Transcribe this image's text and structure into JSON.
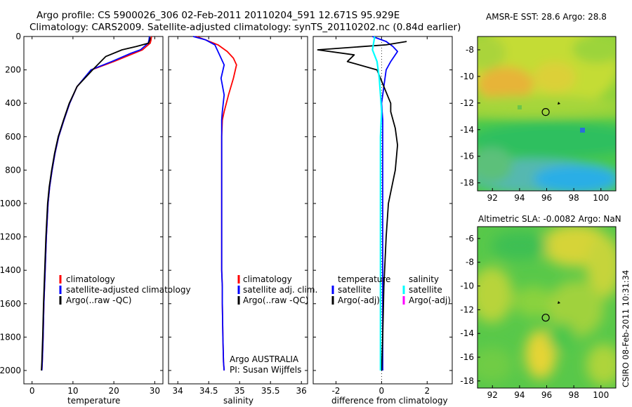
{
  "title": {
    "line1": "Argo profile: CS 5900026_306 02-Feb-2011 20110204_591 12.671S 95.929E",
    "line2": "Climatology: CARS2009. Satellite-adjusted climatology: synTS_20110202.nc (0.84d earlier)"
  },
  "credit": "CSIRO 08-Feb-2011 10:31:34",
  "colors": {
    "climatology": "#ff0000",
    "satellite": "#0000ff",
    "argo": "#000000",
    "sal_satellite": "#00ffff",
    "sal_argo": "#ff00ff"
  },
  "chart_data": [
    {
      "type": "line",
      "name": "temperature-profile",
      "xlabel": "temperature",
      "ylabel": "",
      "xlim": [
        -2,
        32
      ],
      "ylim": [
        0,
        2080
      ],
      "y_reversed": true,
      "xticks": [
        0,
        10,
        20,
        30
      ],
      "yticks": [
        0,
        200,
        400,
        600,
        800,
        1000,
        1200,
        1400,
        1600,
        1800,
        2000
      ],
      "legend": {
        "placement": "lower-right",
        "entries": [
          "climatology",
          "satellite-adjusted climatology",
          "Argo(..raw -QC)"
        ]
      },
      "series": [
        {
          "name": "climatology",
          "x": [
            29.2,
            29.1,
            28.9,
            27.0,
            25.0,
            20.0,
            14.5,
            11.0,
            9.2,
            7.8,
            6.5,
            5.6,
            4.9,
            4.3,
            3.9,
            3.5,
            3.2,
            2.9,
            2.7,
            2.5,
            2.4
          ],
          "y": [
            0,
            20,
            40,
            80,
            100,
            150,
            200,
            300,
            400,
            500,
            600,
            700,
            800,
            900,
            1000,
            1200,
            1400,
            1600,
            1800,
            1950,
            2000
          ]
        },
        {
          "name": "satellite-adjusted climatology",
          "x": [
            28.7,
            28.6,
            28.4,
            26.5,
            24.2,
            19.5,
            14.4,
            11.0,
            9.2,
            7.8,
            6.5,
            5.6,
            4.9,
            4.3,
            3.9,
            3.5,
            3.2,
            2.9,
            2.7,
            2.5,
            2.4
          ],
          "y": [
            0,
            20,
            40,
            80,
            100,
            150,
            200,
            300,
            400,
            500,
            600,
            700,
            800,
            900,
            1000,
            1200,
            1400,
            1600,
            1800,
            1950,
            2000
          ]
        },
        {
          "name": "Argo(..raw -QC)",
          "x": [
            28.9,
            28.8,
            28.5,
            25.5,
            22.0,
            18.0,
            14.8,
            11.0,
            9.1,
            7.7,
            6.4,
            5.5,
            4.8,
            4.2,
            3.8,
            3.4,
            3.1,
            2.8,
            2.6,
            2.4,
            2.3
          ],
          "y": [
            5,
            20,
            40,
            60,
            80,
            120,
            200,
            300,
            400,
            500,
            600,
            700,
            800,
            900,
            1000,
            1200,
            1400,
            1600,
            1800,
            1950,
            2000
          ]
        }
      ]
    },
    {
      "type": "line",
      "name": "salinity-profile",
      "xlabel": "salinity",
      "ylabel": "",
      "xlim": [
        33.85,
        36.1
      ],
      "ylim": [
        0,
        2080
      ],
      "y_reversed": true,
      "xticks": [
        34,
        34.5,
        35,
        35.5,
        36
      ],
      "xtick_labels": [
        "34",
        "34.5",
        "35",
        "35.5",
        "36"
      ],
      "legend": {
        "placement": "lower-right",
        "entries": [
          "climatology",
          "satellite adj. clim.",
          "Argo(..raw -QC)"
        ]
      },
      "annotations": [
        "Argo AUSTRALIA",
        "PI: Susan Wijffels"
      ],
      "series": [
        {
          "name": "climatology",
          "x": [
            34.3,
            34.45,
            34.65,
            34.8,
            34.9,
            34.95,
            34.9,
            34.82,
            34.75,
            34.72,
            34.71,
            34.71,
            34.71,
            34.71,
            34.71,
            34.72,
            34.72,
            34.73,
            34.74,
            34.75
          ],
          "y": [
            0,
            20,
            50,
            90,
            130,
            170,
            250,
            350,
            450,
            500,
            600,
            800,
            1000,
            1200,
            1400,
            1500,
            1600,
            1800,
            1950,
            2000
          ]
        },
        {
          "name": "satellite adj. clim.",
          "x": [
            34.25,
            34.45,
            34.6,
            34.65,
            34.7,
            34.75,
            34.7,
            34.75,
            34.72,
            34.71,
            34.71,
            34.71,
            34.71,
            34.71,
            34.71,
            34.72,
            34.72,
            34.73,
            34.74,
            34.75
          ],
          "y": [
            0,
            20,
            50,
            90,
            130,
            170,
            250,
            350,
            450,
            500,
            600,
            800,
            1000,
            1200,
            1400,
            1500,
            1600,
            1800,
            1950,
            2000
          ]
        }
      ]
    },
    {
      "type": "line",
      "name": "difference-profile",
      "xlabel": "difference from climatology",
      "ylabel": "",
      "xlim": [
        -3,
        3.1
      ],
      "ylim": [
        0,
        2080
      ],
      "y_reversed": true,
      "xticks": [
        -2,
        0,
        2
      ],
      "legend": {
        "placement": "lower-center",
        "temperature_header": "temperature",
        "salinity_header": "salinity",
        "temperature_entries": [
          "satellite",
          "Argo(-adj)"
        ],
        "salinity_entries": [
          "satellite",
          "Argo(-adj)"
        ]
      },
      "series": [
        {
          "name": "temperature satellite",
          "x": [
            -0.4,
            0.2,
            0.5,
            0.7,
            0.4,
            0.2,
            0.1,
            0.0,
            0.05,
            0.05,
            0.05,
            0.05,
            0.05,
            0.05,
            0.05,
            0.05,
            0.05
          ],
          "y": [
            0,
            30,
            60,
            90,
            150,
            200,
            300,
            400,
            500,
            600,
            800,
            1000,
            1200,
            1400,
            1600,
            1800,
            2000
          ]
        },
        {
          "name": "temperature Argo(-adj)",
          "x": [
            1.1,
            0.2,
            -2.8,
            -1.2,
            -1.5,
            -0.2,
            0.1,
            0.4,
            0.4,
            0.6,
            0.7,
            0.6,
            0.3,
            0.2,
            0.1,
            0.05,
            0.0
          ],
          "y": [
            30,
            50,
            80,
            110,
            150,
            200,
            300,
            400,
            450,
            550,
            650,
            800,
            1000,
            1200,
            1500,
            1800,
            2000
          ]
        },
        {
          "name": "salinity satellite",
          "x": [
            -0.3,
            -0.4,
            -0.2,
            -0.1,
            -0.05,
            0.0,
            -0.05,
            -0.05,
            -0.05,
            -0.05,
            -0.05,
            -0.05,
            -0.05,
            -0.05,
            -0.05
          ],
          "y": [
            0,
            80,
            150,
            250,
            350,
            450,
            600,
            800,
            1000,
            1200,
            1400,
            1600,
            1800,
            1950,
            2000
          ]
        }
      ]
    },
    {
      "type": "heatmap",
      "name": "sst-map",
      "title": "AMSR-E SST: 28.6 Argo: 28.8",
      "xlim": [
        90.9,
        101.1
      ],
      "ylim": [
        -18.6,
        -7.0
      ],
      "xticks": [
        92,
        94,
        96,
        98,
        100
      ],
      "yticks": [
        -8,
        -10,
        -12,
        -14,
        -16,
        -18
      ],
      "marker": {
        "lon": 95.929,
        "lat": -12.671
      }
    },
    {
      "type": "heatmap",
      "name": "sla-map",
      "title": "Altimetric SLA: -0.0082 Argo: NaN",
      "xlim": [
        90.9,
        101.1
      ],
      "ylim": [
        -18.6,
        -5.0
      ],
      "xticks": [
        92,
        94,
        96,
        98,
        100
      ],
      "yticks": [
        -6,
        -8,
        -10,
        -12,
        -14,
        -16,
        -18
      ],
      "marker": {
        "lon": 95.929,
        "lat": -12.671
      }
    }
  ]
}
